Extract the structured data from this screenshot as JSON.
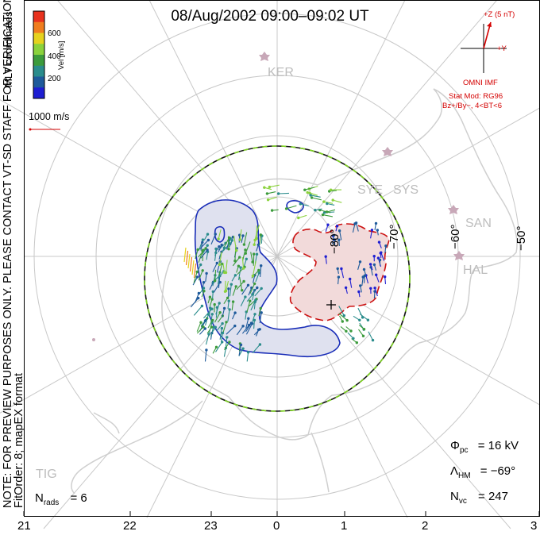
{
  "title": "08/Aug/2002 09:00–09:02 UT",
  "side_note_line1": "NOTE: FOR PREVIEW PURPOSES ONLY. PLEASE CONTACT VT-SD STAFF FOR VERIFICATION.",
  "side_note_line2": "FitOrder: 8; mapEX format",
  "coordinates": "MLT coordinates",
  "colorbar": {
    "label": "Vel [m/s]",
    "ticks": [
      "600",
      "400",
      "200"
    ],
    "colors": [
      "#e8321e",
      "#f07d1e",
      "#e6d21e",
      "#8bd23c",
      "#3c9b3c",
      "#2a8c8c",
      "#1e5a9b",
      "#1e1ed2"
    ]
  },
  "reference_vector": "1000 m/s",
  "imf": {
    "z_label": "+Z (5 nT)",
    "y_label": "+Y",
    "source": "OMNI IMF",
    "model_line1": "Stat Mod: RG96",
    "model_line2": "Bz+/By−, 4<BT<6"
  },
  "sites": [
    "KER",
    "SYE",
    "SYS",
    "SAN",
    "HAL",
    "TIG"
  ],
  "latitude_labels": [
    "−80°",
    "−70°",
    "−60°",
    "−50°"
  ],
  "stats": {
    "phi_symbol": "Φ",
    "phi_sub": "pc",
    "phi_value": "= 16 kV",
    "lambda_symbol": "Λ",
    "lambda_sub": "HM",
    "lambda_value": "= −69°",
    "n_symbol": "N",
    "nvc_sub": "vc",
    "nvc_value": "= 247",
    "nrads_sub": "rads",
    "nrads_value": "= 6"
  },
  "mlt_ticks": [
    "21",
    "22",
    "23",
    "0",
    "1",
    "2",
    "3"
  ],
  "colors": {
    "grid": "#c8c8c8",
    "land": "#cfcfcf",
    "negative_cell_fill": "#dfe1ef",
    "negative_cell_line": "#1a2eb8",
    "positive_cell_fill": "#f2dada",
    "positive_cell_line": "#cc1111",
    "imf_red": "#d40000",
    "boundary_green": "#7ed321"
  }
}
